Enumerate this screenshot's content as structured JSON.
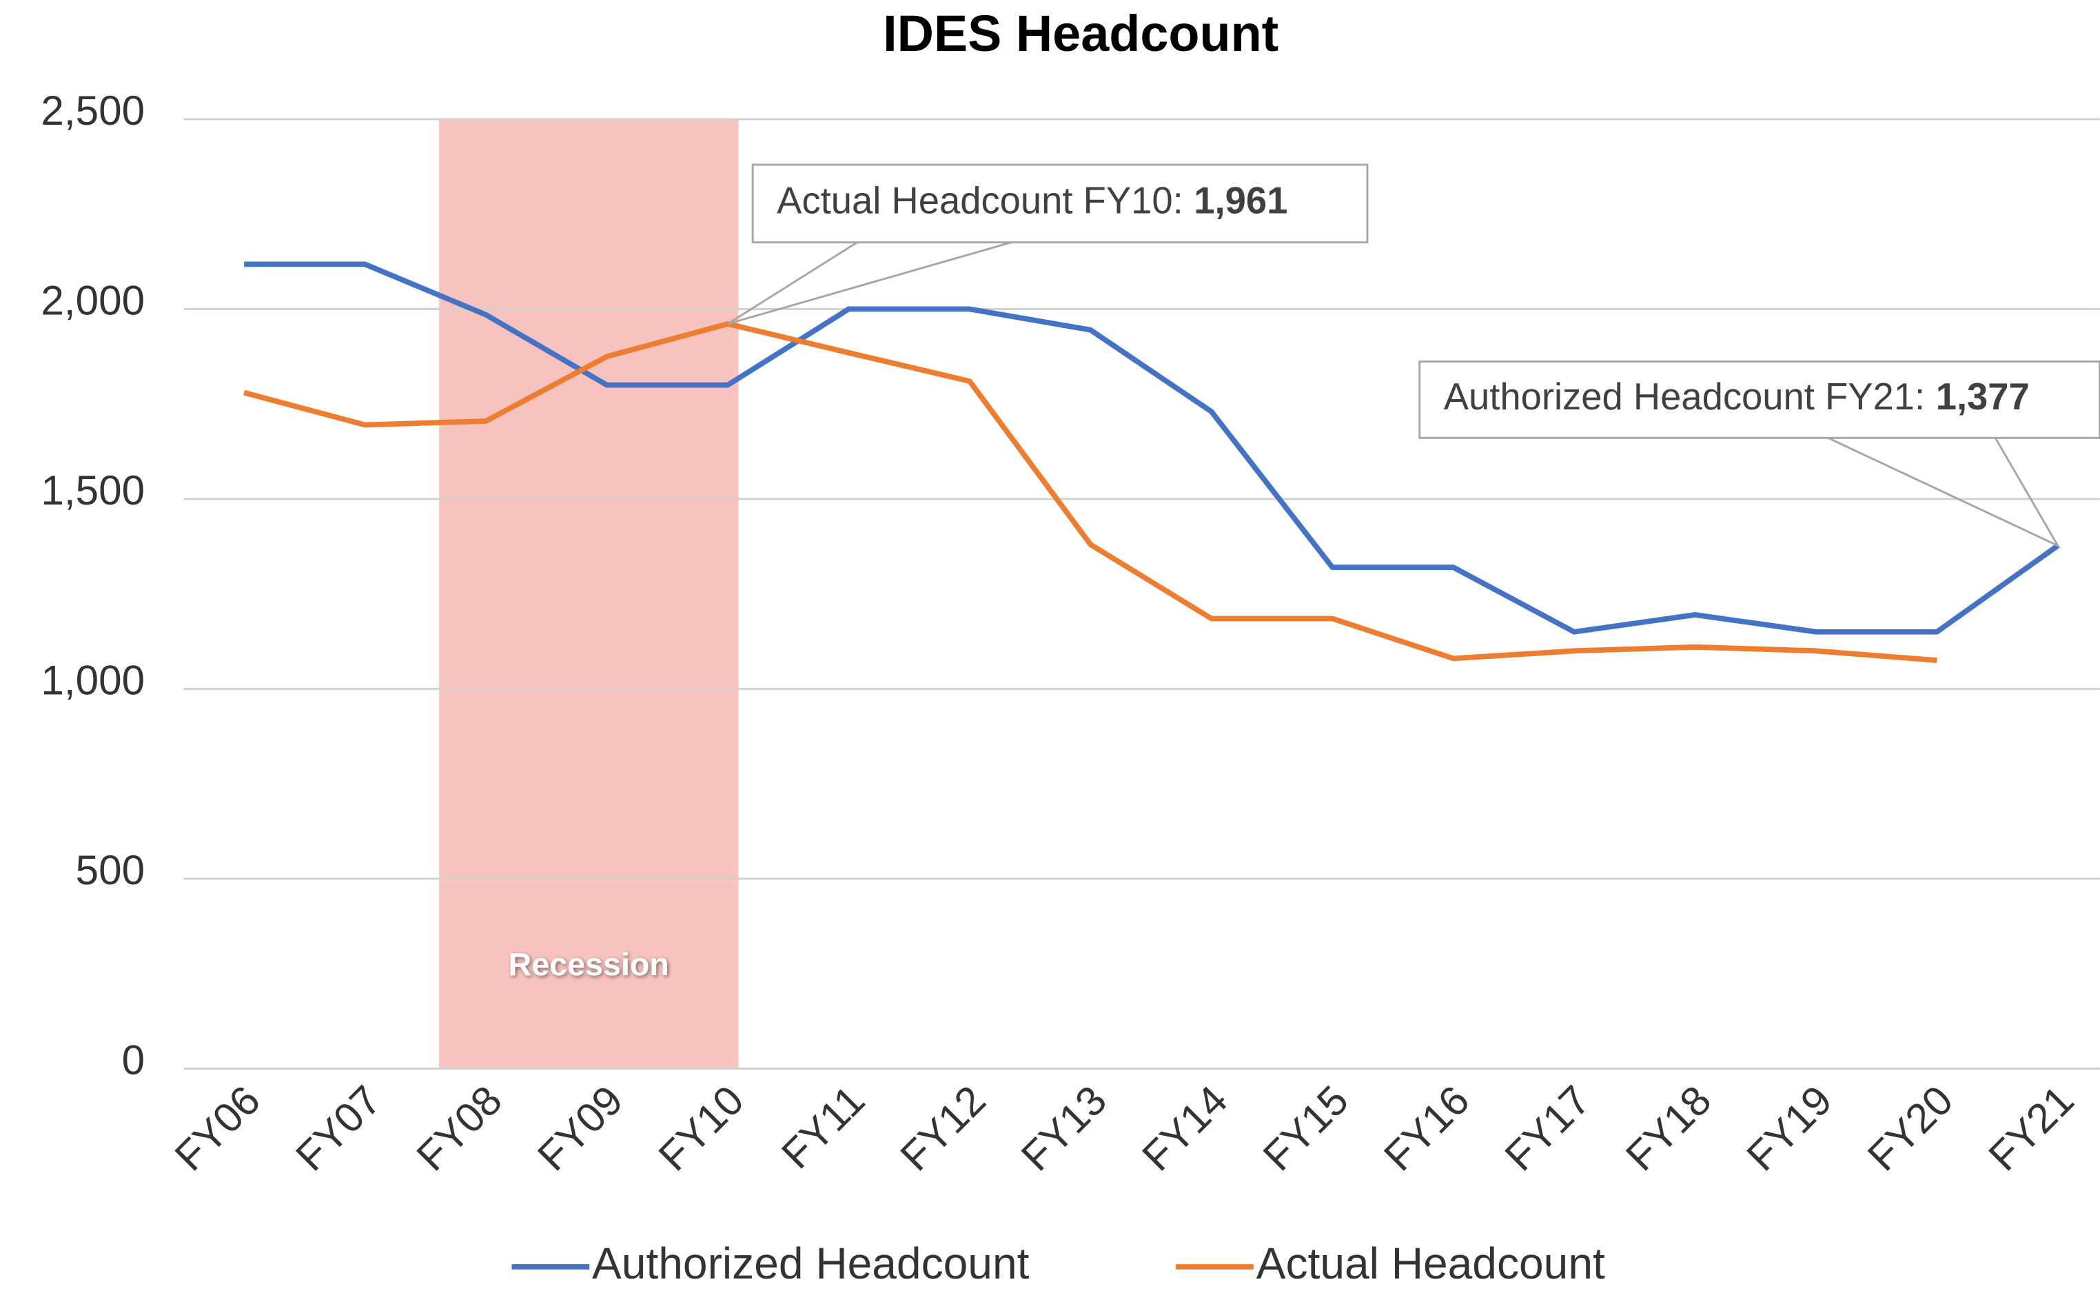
{
  "chart_data": {
    "type": "line",
    "title": "IDES Headcount",
    "categories": [
      "FY06",
      "FY07",
      "FY08",
      "FY09",
      "FY10",
      "FY11",
      "FY12",
      "FY13",
      "FY14",
      "FY15",
      "FY16",
      "FY17",
      "FY18",
      "FY19",
      "FY20",
      "FY21"
    ],
    "series": [
      {
        "name": "Authorized Headcount",
        "color": "#4472c4",
        "values": [
          2118,
          2118,
          1985,
          1800,
          1800,
          2000,
          2000,
          1945,
          1730,
          1320,
          1320,
          1150,
          1195,
          1150,
          1150,
          1377
        ]
      },
      {
        "name": "Actual Headcount",
        "color": "#ed7d31",
        "values": [
          1780,
          1695,
          1705,
          1875,
          1961,
          1885,
          1810,
          1380,
          1185,
          1185,
          1080,
          1100,
          1110,
          1100,
          1075,
          null
        ]
      }
    ],
    "ylim": [
      0,
      2500
    ],
    "yticks": [
      0,
      500,
      {
        "value": 1000,
        "label": "1,000"
      },
      {
        "value": 1500,
        "label": "1,500"
      },
      {
        "value": 2000,
        "label": "2,000"
      },
      {
        "value": 2500,
        "label": "2,500"
      }
    ],
    "grid": true,
    "legend": "bottom",
    "shaded_region": {
      "label": "Recession",
      "from": "FY08",
      "to": "FY10",
      "color": "#f8c3be"
    },
    "annotations": [
      {
        "text": "Actual Headcount FY10:",
        "label": "1,961",
        "category": "FY10",
        "series": 1
      },
      {
        "text": "Authorized Headcount FY21:",
        "label": "1,377",
        "category": "FY21",
        "series": 0
      }
    ]
  }
}
